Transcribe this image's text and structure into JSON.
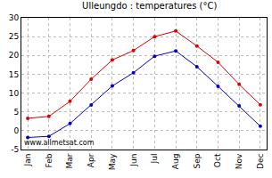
{
  "chart_data": {
    "type": "line",
    "title": "Ulleungdo : temperatures (°C)",
    "categories": [
      "Jan",
      "Feb",
      "Mar",
      "Apr",
      "May",
      "Jun",
      "Jul",
      "Aug",
      "Sep",
      "Oct",
      "Nov",
      "Dec"
    ],
    "series": [
      {
        "color": "#dd0000",
        "values": [
          3.3,
          3.8,
          7.8,
          13.7,
          18.8,
          21.3,
          25.0,
          26.5,
          22.5,
          18.2,
          12.3,
          6.9
        ]
      },
      {
        "color": "#0000cc",
        "values": [
          -1.8,
          -1.5,
          1.9,
          6.8,
          11.9,
          15.4,
          19.8,
          21.2,
          17.0,
          11.8,
          6.6,
          1.2
        ]
      }
    ],
    "ylim": [
      -5,
      30
    ],
    "yticks": [
      -5,
      0,
      5,
      10,
      15,
      20,
      25,
      30
    ],
    "grid": true,
    "marker": "circle",
    "annotations": [
      "www.allmetsat.com"
    ]
  }
}
